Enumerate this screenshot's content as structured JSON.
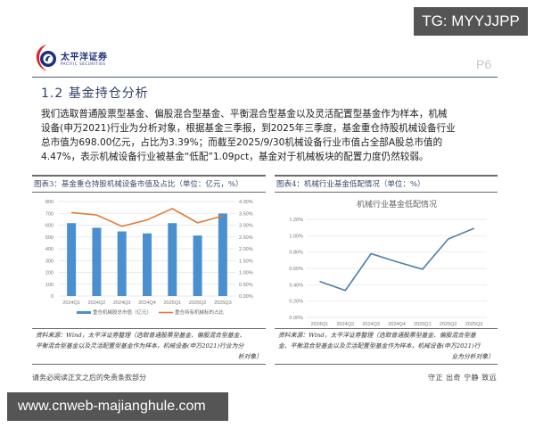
{
  "watermarks": {
    "top": "TG: MYYJJPP",
    "bottom": "www.cnweb-majianghule.com"
  },
  "header": {
    "logo_cn": "太平洋证券",
    "logo_en": "PACIFIC SECURITIES",
    "page_number": "P6",
    "brand_colors": {
      "navy": "#1d2f7a",
      "red": "#d9262c"
    }
  },
  "section": {
    "title": "1.2 基金持仓分析"
  },
  "paragraph": {
    "lines": [
      "我们选取普通股票型基金、偏股混合型基金、平衡混合型基金以及灵活配置型基金作为样本，机械",
      "设备(申万2021)行业为分析对象，根据基金三季报，到2025年三季度，基金重仓持股机械设备行业",
      "总市值为698.00亿元，占比为3.39%；而截至2025/9/30机械设备行业市值占全部A股总市值的",
      "4.47%，表示机械设备行业被基金“低配”1.09pct，基金对于机械板块的配置力度仍然较弱。"
    ]
  },
  "figure3": {
    "title": "图表3：基金重仓持股机械设备市值及占比（单位：亿元，%）",
    "source_lines": [
      "资料来源：Wind，太平洋证券整理（选取普通股票型基金、偏股混合型基金、",
      "平衡混合型基金以及灵活配置型基金作为样本，机械设备(申万2021)行业为分",
      "析对象）"
    ]
  },
  "figure4": {
    "title": "图表4：机械行业基金低配情况（单位：%）",
    "source_lines": [
      "资料来源：Wind，太平洋证券整理（选取普通股票型基金、偏股混合型基",
      "金、平衡混合型基金以及灵活配置型基金作为样本，机械设备(申万2021)行",
      "业为分析对象）"
    ]
  },
  "footer": {
    "disclaimer": "请务必阅读正文之后的免责条款部分",
    "slogan": "守正 出奇 宁静 致远"
  },
  "chart_data": [
    {
      "type": "bar",
      "title": "基金重仓持股机械设备市值及占比（单位：亿元，%）",
      "categories": [
        "2024Q1",
        "2024Q2",
        "2024Q3",
        "2024Q4",
        "2025Q1",
        "2025Q2",
        "2025Q3"
      ],
      "series": [
        {
          "name": "重仓机械股总市值（亿元）",
          "type": "bar",
          "axis": "left",
          "color": "#4a8fd0",
          "values": [
            617,
            578,
            547,
            530,
            617,
            512,
            698
          ]
        },
        {
          "name": "重仓持有机械标的占比",
          "type": "line",
          "axis": "right",
          "color": "#e07b39",
          "values": [
            3.53,
            3.43,
            2.95,
            3.22,
            3.7,
            3.1,
            3.39
          ]
        }
      ],
      "ylim_left": [
        0,
        800
      ],
      "yticks_left": [
        "0",
        "100",
        "200",
        "300",
        "400",
        "500",
        "600",
        "700",
        "800"
      ],
      "ylim_right": [
        0,
        4.0
      ],
      "yticks_right": [
        "0.00%",
        "0.50%",
        "1.00%",
        "1.50%",
        "2.00%",
        "2.50%",
        "3.00%",
        "3.50%",
        "4.00%"
      ],
      "grid": true,
      "legend_position": "bottom"
    },
    {
      "type": "line",
      "title": "机械行业基金低配情况",
      "categories": [
        "2024Q1",
        "2024Q2",
        "2024Q3",
        "2024Q4",
        "2025Q1",
        "2025Q2",
        "2025Q3"
      ],
      "series": [
        {
          "name": "机械行业基金低配",
          "color": "#4f7ea8",
          "values": [
            0.44,
            0.33,
            0.78,
            0.68,
            0.59,
            0.96,
            1.09
          ]
        }
      ],
      "ylim": [
        0,
        1.2
      ],
      "yticks": [
        "0.00%",
        "0.20%",
        "0.40%",
        "0.60%",
        "0.80%",
        "1.00%",
        "1.20%"
      ],
      "grid": true
    }
  ]
}
